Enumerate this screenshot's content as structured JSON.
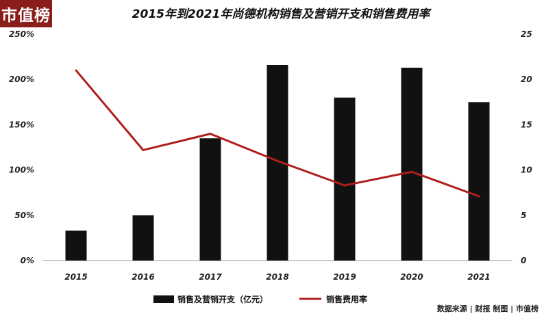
{
  "logo_text": "市值榜",
  "source_text": "数据来源 | 财报 制图 | 市值榜",
  "colors": {
    "bar": "#111111",
    "line": "#b01e1e",
    "logo_bg": "#8a1c1c"
  },
  "chart_data": {
    "type": "bar",
    "title": "2015年到2021年尚德机构销售及营销开支和销售费用率",
    "categories": [
      "2015",
      "2016",
      "2017",
      "2018",
      "2019",
      "2020",
      "2021"
    ],
    "series": [
      {
        "name": "销售及营销开支（亿元）",
        "type": "bar",
        "axis": "right",
        "values": [
          3.3,
          5.0,
          13.5,
          21.6,
          18.0,
          21.3,
          17.5
        ]
      },
      {
        "name": "销售费用率",
        "type": "line",
        "axis": "left",
        "values": [
          210,
          122,
          140,
          110,
          83,
          98,
          71
        ]
      }
    ],
    "left_axis": {
      "ylim": [
        0,
        250
      ],
      "ticks": [
        0,
        50,
        100,
        150,
        200,
        250
      ],
      "tick_labels": [
        "0%",
        "50%",
        "100%",
        "150%",
        "200%",
        "250%"
      ]
    },
    "right_axis": {
      "ylim": [
        0,
        25
      ],
      "ticks": [
        0,
        5,
        10,
        15,
        20,
        25
      ],
      "tick_labels": [
        "0",
        "5",
        "10",
        "15",
        "20",
        "25"
      ]
    },
    "grid": false,
    "legend_position": "bottom"
  }
}
